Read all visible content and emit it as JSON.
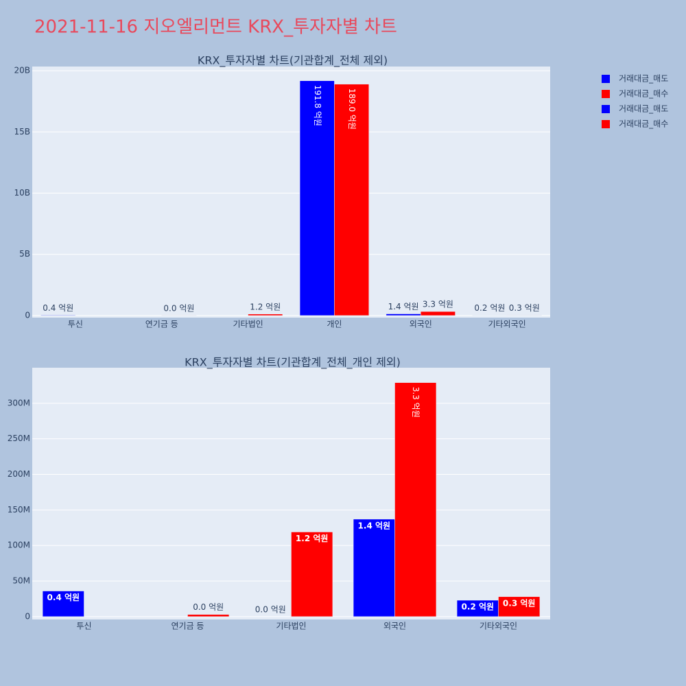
{
  "title": "2021-11-16 지오엘리먼트 KRX_투자자별 차트",
  "chart_data": [
    {
      "type": "bar",
      "title": "KRX_투자자별 차트(기관합계_전체 제외)",
      "categories": [
        "투신",
        "연기금 등",
        "기타법인",
        "개인",
        "외국인",
        "기타외국인"
      ],
      "series": [
        {
          "name": "거래대금_매도",
          "color": "#0000ff",
          "values": [
            36000000,
            null,
            null,
            19180000000,
            137000000,
            23000000
          ],
          "value_labels": [
            "0.4 억원",
            null,
            null,
            "191.8 억원",
            "1.4 억원",
            "0.2 억원"
          ]
        },
        {
          "name": "거래대금_매수",
          "color": "#ff0000",
          "values": [
            null,
            3000000,
            119000000,
            18900000000,
            329000000,
            28000000
          ],
          "value_labels": [
            null,
            "0.0 억원",
            "1.2 억원",
            "189.0 억원",
            "3.3 억원",
            "0.3 억원"
          ]
        }
      ],
      "ylim": [
        -170000000,
        20340000000
      ],
      "yticks": [
        0,
        {
          "value": 5000000000,
          "label": "5B"
        },
        {
          "value": 10000000000,
          "label": "10B"
        },
        {
          "value": 15000000000,
          "label": "15B"
        },
        {
          "value": 20000000000,
          "label": "20B"
        }
      ],
      "grid": true
    },
    {
      "type": "bar",
      "title": "KRX_투자자별 차트(기관합계_전체_개인 제외)",
      "categories": [
        "투신",
        "연기금 등",
        "기타법인",
        "외국인",
        "기타외국인"
      ],
      "series": [
        {
          "name": "거래대금_매도",
          "color": "#0000ff",
          "values": [
            36000000,
            null,
            0,
            137000000,
            23000000
          ],
          "value_labels": [
            "0.4 억원",
            null,
            "0.0 억원",
            "1.4 억원",
            "0.2 억원"
          ]
        },
        {
          "name": "거래대금_매수",
          "color": "#ff0000",
          "values": [
            null,
            3000000,
            119000000,
            329000000,
            28000000
          ],
          "value_labels": [
            null,
            "0.0 억원",
            "1.2 억원",
            "3.3 억원",
            "0.3 억원"
          ]
        }
      ],
      "ylim": [
        -4000000,
        350000000
      ],
      "yticks": [
        0,
        {
          "value": 50000000,
          "label": "50M"
        },
        {
          "value": 100000000,
          "label": "100M"
        },
        {
          "value": 150000000,
          "label": "150M"
        },
        {
          "value": 200000000,
          "label": "200M"
        },
        {
          "value": 250000000,
          "label": "250M"
        },
        {
          "value": 300000000,
          "label": "300M"
        }
      ],
      "grid": true
    }
  ]
}
